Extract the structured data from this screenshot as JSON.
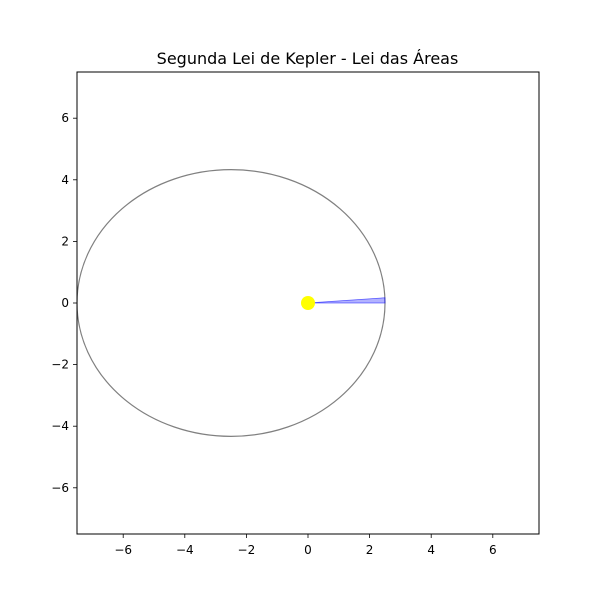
{
  "chart_data": {
    "type": "scatter",
    "title": "Segunda Lei de Kepler - Lei das Áreas",
    "xlabel": "",
    "ylabel": "",
    "xlim": [
      -7.5,
      7.5
    ],
    "ylim": [
      -7.5,
      7.5
    ],
    "x_ticks": [
      -6,
      -4,
      -2,
      0,
      2,
      4,
      6
    ],
    "y_ticks": [
      -6,
      -4,
      -2,
      0,
      2,
      4,
      6
    ],
    "x_tick_labels": [
      "−6",
      "−4",
      "−2",
      "0",
      "2",
      "4",
      "6"
    ],
    "y_tick_labels": [
      "−6",
      "−4",
      "−2",
      "0",
      "2",
      "4",
      "6"
    ],
    "grid": false,
    "orbit": {
      "center": [
        -2.5,
        0
      ],
      "semi_major_axis": 5.0,
      "semi_minor_axis": 4.33,
      "color": "#808080"
    },
    "sun": {
      "position": [
        0,
        0
      ],
      "color": "#ffff00"
    },
    "swept_area": {
      "vertices": [
        [
          0,
          0
        ],
        [
          2.5,
          0
        ],
        [
          2.5,
          0.17
        ]
      ],
      "fill_color": "#0000ff",
      "fill_opacity": 0.3,
      "edge_color": "#0000ff"
    }
  }
}
